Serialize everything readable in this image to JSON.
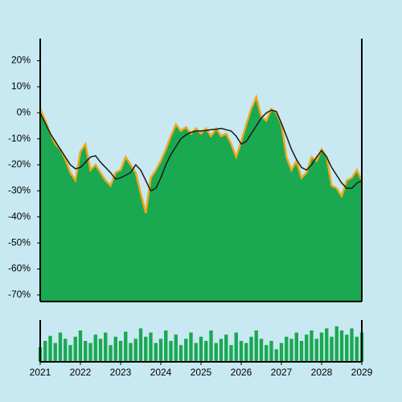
{
  "chart_data": [
    {
      "type": "area",
      "x": [
        2021,
        2021.125,
        2021.25,
        2021.375,
        2021.5,
        2021.625,
        2021.75,
        2021.875,
        2022,
        2022.125,
        2022.25,
        2022.375,
        2022.5,
        2022.625,
        2022.75,
        2022.875,
        2023,
        2023.125,
        2023.25,
        2023.375,
        2023.5,
        2023.625,
        2023.75,
        2023.875,
        2024,
        2024.125,
        2024.25,
        2024.375,
        2024.5,
        2024.625,
        2024.75,
        2024.875,
        2025,
        2025.125,
        2025.25,
        2025.375,
        2025.5,
        2025.625,
        2025.75,
        2025.875,
        2026,
        2026.125,
        2026.25,
        2026.375,
        2026.5,
        2026.625,
        2026.75,
        2026.875,
        2027,
        2027.125,
        2027.25,
        2027.375,
        2027.5,
        2027.625,
        2027.75,
        2027.875,
        2028,
        2028.125,
        2028.25,
        2028.375,
        2028.5,
        2028.625,
        2028.75,
        2028.875,
        2029
      ],
      "series": [
        {
          "type": "area",
          "color": "#1aa851",
          "edge_color": "#f0a81c",
          "values": [
            1.5,
            -3,
            -8,
            -12,
            -14,
            -18,
            -23,
            -26,
            -15,
            -12,
            -22,
            -20,
            -23,
            -26,
            -28,
            -23,
            -22,
            -17,
            -20,
            -23,
            -31,
            -38.5,
            -25,
            -22,
            -18.5,
            -14,
            -9,
            -4.5,
            -7,
            -5.5,
            -8,
            -6,
            -8,
            -6,
            -9,
            -6,
            -9,
            -8,
            -12,
            -17,
            -11,
            -4.5,
            1.5,
            6,
            -1.5,
            -3,
            1.5,
            0,
            -4.5,
            -17,
            -22,
            -18.5,
            -25,
            -23,
            -17,
            -18.5,
            -14,
            -17,
            -28,
            -29,
            -32,
            -26,
            -25,
            -22,
            -26
          ]
        },
        {
          "type": "line",
          "color": "#1a1a1a",
          "values": [
            0,
            -4,
            -8,
            -11,
            -14,
            -17,
            -20,
            -21.5,
            -21,
            -19,
            -17,
            -16.5,
            -19,
            -21,
            -23,
            -25.5,
            -25,
            -24,
            -23,
            -20,
            -22,
            -26,
            -30,
            -29,
            -25,
            -20,
            -16,
            -13,
            -10,
            -8.5,
            -7.5,
            -7,
            -7,
            -6.8,
            -6.5,
            -6.3,
            -6,
            -6.5,
            -7,
            -9,
            -12,
            -11,
            -8,
            -5,
            -2,
            0,
            1,
            0.5,
            -4,
            -9,
            -14,
            -18,
            -21,
            -22,
            -20,
            -17,
            -14.5,
            -17,
            -21,
            -24,
            -27,
            -29,
            -29,
            -27,
            -26
          ]
        }
      ],
      "ylim": [
        -72.5,
        28.5
      ],
      "yticks": [
        {
          "value": 20,
          "label": "20%"
        },
        {
          "value": 10,
          "label": "10%"
        },
        {
          "value": 0,
          "label": "0%"
        },
        {
          "value": -10,
          "label": "-10%"
        },
        {
          "value": -20,
          "label": "-20%"
        },
        {
          "value": -30,
          "label": "-30%"
        },
        {
          "value": -40,
          "label": "-40%"
        },
        {
          "value": -50,
          "label": "-50%"
        },
        {
          "value": -60,
          "label": "-60%"
        },
        {
          "value": -70,
          "label": "-70%"
        }
      ],
      "xlim": [
        2021,
        2029
      ]
    },
    {
      "type": "bar",
      "color": "#1aa851",
      "x": [
        2021,
        2021.125,
        2021.25,
        2021.375,
        2021.5,
        2021.625,
        2021.75,
        2021.875,
        2022,
        2022.125,
        2022.25,
        2022.375,
        2022.5,
        2022.625,
        2022.75,
        2022.875,
        2023,
        2023.125,
        2023.25,
        2023.375,
        2023.5,
        2023.625,
        2023.75,
        2023.875,
        2024,
        2024.125,
        2024.25,
        2024.375,
        2024.5,
        2024.625,
        2024.75,
        2024.875,
        2025,
        2025.125,
        2025.25,
        2025.375,
        2025.5,
        2025.625,
        2025.75,
        2025.875,
        2026,
        2026.125,
        2026.25,
        2026.375,
        2026.5,
        2026.625,
        2026.75,
        2026.875,
        2027,
        2027.125,
        2027.25,
        2027.375,
        2027.5,
        2027.625,
        2027.75,
        2027.875,
        2028,
        2028.125,
        2028.25,
        2028.375,
        2028.5,
        2028.625,
        2028.75,
        2028.875,
        2029
      ],
      "values": [
        35,
        50,
        62,
        45,
        70,
        55,
        40,
        60,
        75,
        50,
        45,
        65,
        55,
        70,
        40,
        60,
        50,
        72,
        45,
        55,
        80,
        60,
        70,
        45,
        55,
        75,
        50,
        65,
        40,
        55,
        70,
        45,
        60,
        50,
        75,
        45,
        55,
        65,
        40,
        70,
        50,
        45,
        60,
        75,
        55,
        40,
        50,
        30,
        45,
        60,
        55,
        70,
        50,
        65,
        75,
        55,
        70,
        80,
        60,
        85,
        75,
        65,
        80,
        60,
        70
      ],
      "ylim": [
        0,
        100
      ],
      "xlim": [
        2021,
        2029
      ],
      "xticks": [
        2021,
        2022,
        2023,
        2024,
        2025,
        2026,
        2027,
        2028,
        2029
      ]
    }
  ]
}
